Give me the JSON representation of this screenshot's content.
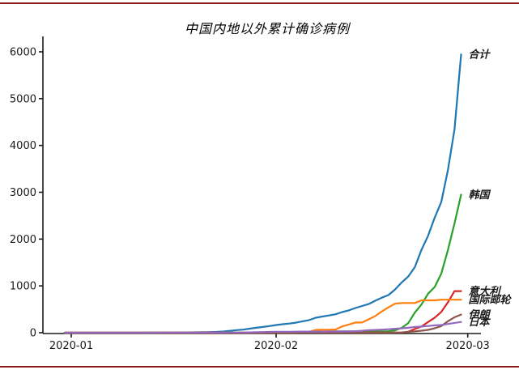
{
  "page": {
    "top_rule_color": "#8b1a1a",
    "bottom_rule_color": "#8b1a1a",
    "background_color": "#ffffff"
  },
  "chart_data": {
    "type": "line",
    "title": "中国内地以外累计确诊病例",
    "xlabel": "",
    "ylabel": "",
    "grid": false,
    "legend_position": "line-end-annotations",
    "x_tick_labels": [
      "2020-01",
      "2020-02",
      "2020-03"
    ],
    "y_ticks": [
      0,
      1000,
      2000,
      3000,
      4000,
      5000,
      6000
    ],
    "ylim": [
      0,
      6300
    ],
    "axis_color": "#1a1a1a",
    "x": [
      "2019-12-31",
      "2020-01-01",
      "2020-01-02",
      "2020-01-03",
      "2020-01-04",
      "2020-01-05",
      "2020-01-06",
      "2020-01-07",
      "2020-01-08",
      "2020-01-09",
      "2020-01-10",
      "2020-01-11",
      "2020-01-12",
      "2020-01-13",
      "2020-01-14",
      "2020-01-15",
      "2020-01-16",
      "2020-01-17",
      "2020-01-18",
      "2020-01-19",
      "2020-01-20",
      "2020-01-21",
      "2020-01-22",
      "2020-01-23",
      "2020-01-24",
      "2020-01-25",
      "2020-01-26",
      "2020-01-27",
      "2020-01-28",
      "2020-01-29",
      "2020-01-30",
      "2020-01-31",
      "2020-02-01",
      "2020-02-02",
      "2020-02-03",
      "2020-02-04",
      "2020-02-05",
      "2020-02-06",
      "2020-02-07",
      "2020-02-08",
      "2020-02-09",
      "2020-02-10",
      "2020-02-11",
      "2020-02-12",
      "2020-02-13",
      "2020-02-14",
      "2020-02-15",
      "2020-02-16",
      "2020-02-17",
      "2020-02-18",
      "2020-02-19",
      "2020-02-20",
      "2020-02-21",
      "2020-02-22",
      "2020-02-23",
      "2020-02-24",
      "2020-02-25",
      "2020-02-26",
      "2020-02-27",
      "2020-02-28",
      "2020-02-29"
    ],
    "series": [
      {
        "name": "合计",
        "color": "#1f77b4",
        "values": [
          0,
          0,
          0,
          0,
          0,
          0,
          0,
          0,
          0,
          0,
          0,
          0,
          0,
          1,
          1,
          2,
          3,
          4,
          6,
          7,
          8,
          10,
          14,
          18,
          26,
          39,
          56,
          65,
          87,
          105,
          123,
          142,
          164,
          181,
          196,
          214,
          243,
          270,
          320,
          345,
          368,
          395,
          441,
          477,
          528,
          570,
          612,
          683,
          749,
          804,
          924,
          1073,
          1200,
          1402,
          1769,
          2069,
          2459,
          2790,
          3474,
          4351,
          5944
        ]
      },
      {
        "name": "韩国",
        "color": "#2ca02c",
        "values": [
          0,
          0,
          0,
          0,
          0,
          0,
          0,
          0,
          0,
          0,
          0,
          0,
          0,
          0,
          0,
          0,
          0,
          0,
          0,
          0,
          1,
          1,
          1,
          1,
          2,
          2,
          3,
          4,
          4,
          4,
          6,
          11,
          12,
          15,
          15,
          16,
          19,
          23,
          24,
          24,
          27,
          27,
          28,
          28,
          28,
          28,
          28,
          29,
          30,
          31,
          51,
          104,
          204,
          433,
          602,
          833,
          977,
          1261,
          1766,
          2337,
          2950
        ]
      },
      {
        "name": "意大利",
        "color": "#d62728",
        "values": [
          0,
          0,
          0,
          0,
          0,
          0,
          0,
          0,
          0,
          0,
          0,
          0,
          0,
          0,
          0,
          0,
          0,
          0,
          0,
          0,
          0,
          0,
          0,
          0,
          0,
          0,
          0,
          0,
          0,
          0,
          0,
          2,
          2,
          2,
          2,
          2,
          2,
          3,
          3,
          3,
          3,
          3,
          3,
          3,
          3,
          3,
          3,
          3,
          3,
          3,
          3,
          3,
          20,
          79,
          132,
          229,
          322,
          445,
          650,
          888,
          888
        ]
      },
      {
        "name": "国际邮轮",
        "color": "#ff7f0e",
        "values": [
          0,
          0,
          0,
          0,
          0,
          0,
          0,
          0,
          0,
          0,
          0,
          0,
          0,
          0,
          0,
          0,
          0,
          0,
          0,
          0,
          0,
          0,
          0,
          0,
          0,
          0,
          0,
          0,
          0,
          0,
          0,
          0,
          0,
          0,
          0,
          0,
          10,
          20,
          61,
          64,
          64,
          70,
          135,
          175,
          218,
          218,
          285,
          355,
          454,
          542,
          621,
          634,
          634,
          634,
          691,
          691,
          691,
          705,
          705,
          705,
          705
        ]
      },
      {
        "name": "伊朗",
        "color": "#8c564b",
        "values": [
          0,
          0,
          0,
          0,
          0,
          0,
          0,
          0,
          0,
          0,
          0,
          0,
          0,
          0,
          0,
          0,
          0,
          0,
          0,
          0,
          0,
          0,
          0,
          0,
          0,
          0,
          0,
          0,
          0,
          0,
          0,
          0,
          0,
          0,
          0,
          0,
          0,
          0,
          0,
          0,
          0,
          0,
          0,
          0,
          0,
          0,
          0,
          0,
          0,
          0,
          2,
          5,
          18,
          28,
          43,
          61,
          95,
          141,
          245,
          330,
          388
        ]
      },
      {
        "name": "日本",
        "color": "#9467bd",
        "values": [
          0,
          0,
          0,
          0,
          0,
          0,
          0,
          0,
          0,
          0,
          0,
          0,
          0,
          0,
          0,
          1,
          1,
          1,
          1,
          1,
          1,
          1,
          1,
          1,
          2,
          3,
          4,
          4,
          7,
          11,
          14,
          17,
          20,
          20,
          20,
          23,
          25,
          25,
          25,
          25,
          26,
          26,
          28,
          29,
          33,
          41,
          53,
          59,
          66,
          74,
          84,
          94,
          105,
          122,
          132,
          144,
          157,
          164,
          186,
          210,
          230
        ]
      }
    ]
  }
}
